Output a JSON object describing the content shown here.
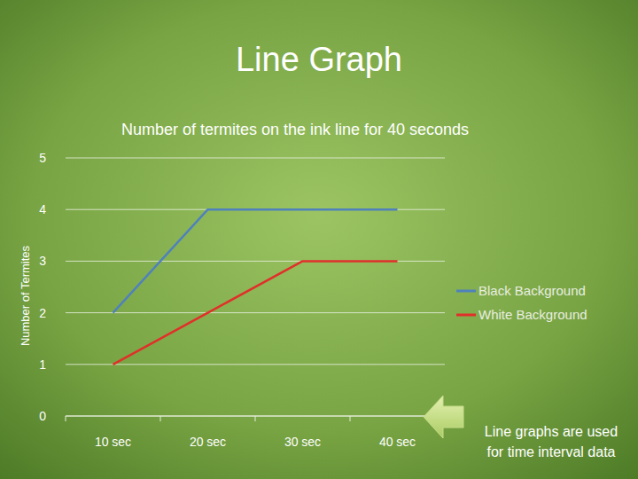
{
  "chart_data": {
    "type": "line",
    "title": "Line Graph",
    "subtitle": "Number of termites on the ink line for 40 seconds",
    "y_label": "Number of Termites",
    "categories": [
      "10 sec",
      "20 sec",
      "30 sec",
      "40 sec"
    ],
    "series": [
      {
        "name": "Black Background",
        "color": "#4f81bd",
        "values": [
          2,
          4,
          4,
          4
        ]
      },
      {
        "name": "White Background",
        "color": "#e0302a",
        "values": [
          1,
          2,
          3,
          3
        ]
      }
    ],
    "ylim": [
      0,
      5
    ],
    "yticks": [
      0,
      1,
      2,
      3,
      4,
      5
    ],
    "grid": true,
    "legend": "right",
    "annotations": [
      "Line graphs are used",
      "for time interval data"
    ]
  }
}
